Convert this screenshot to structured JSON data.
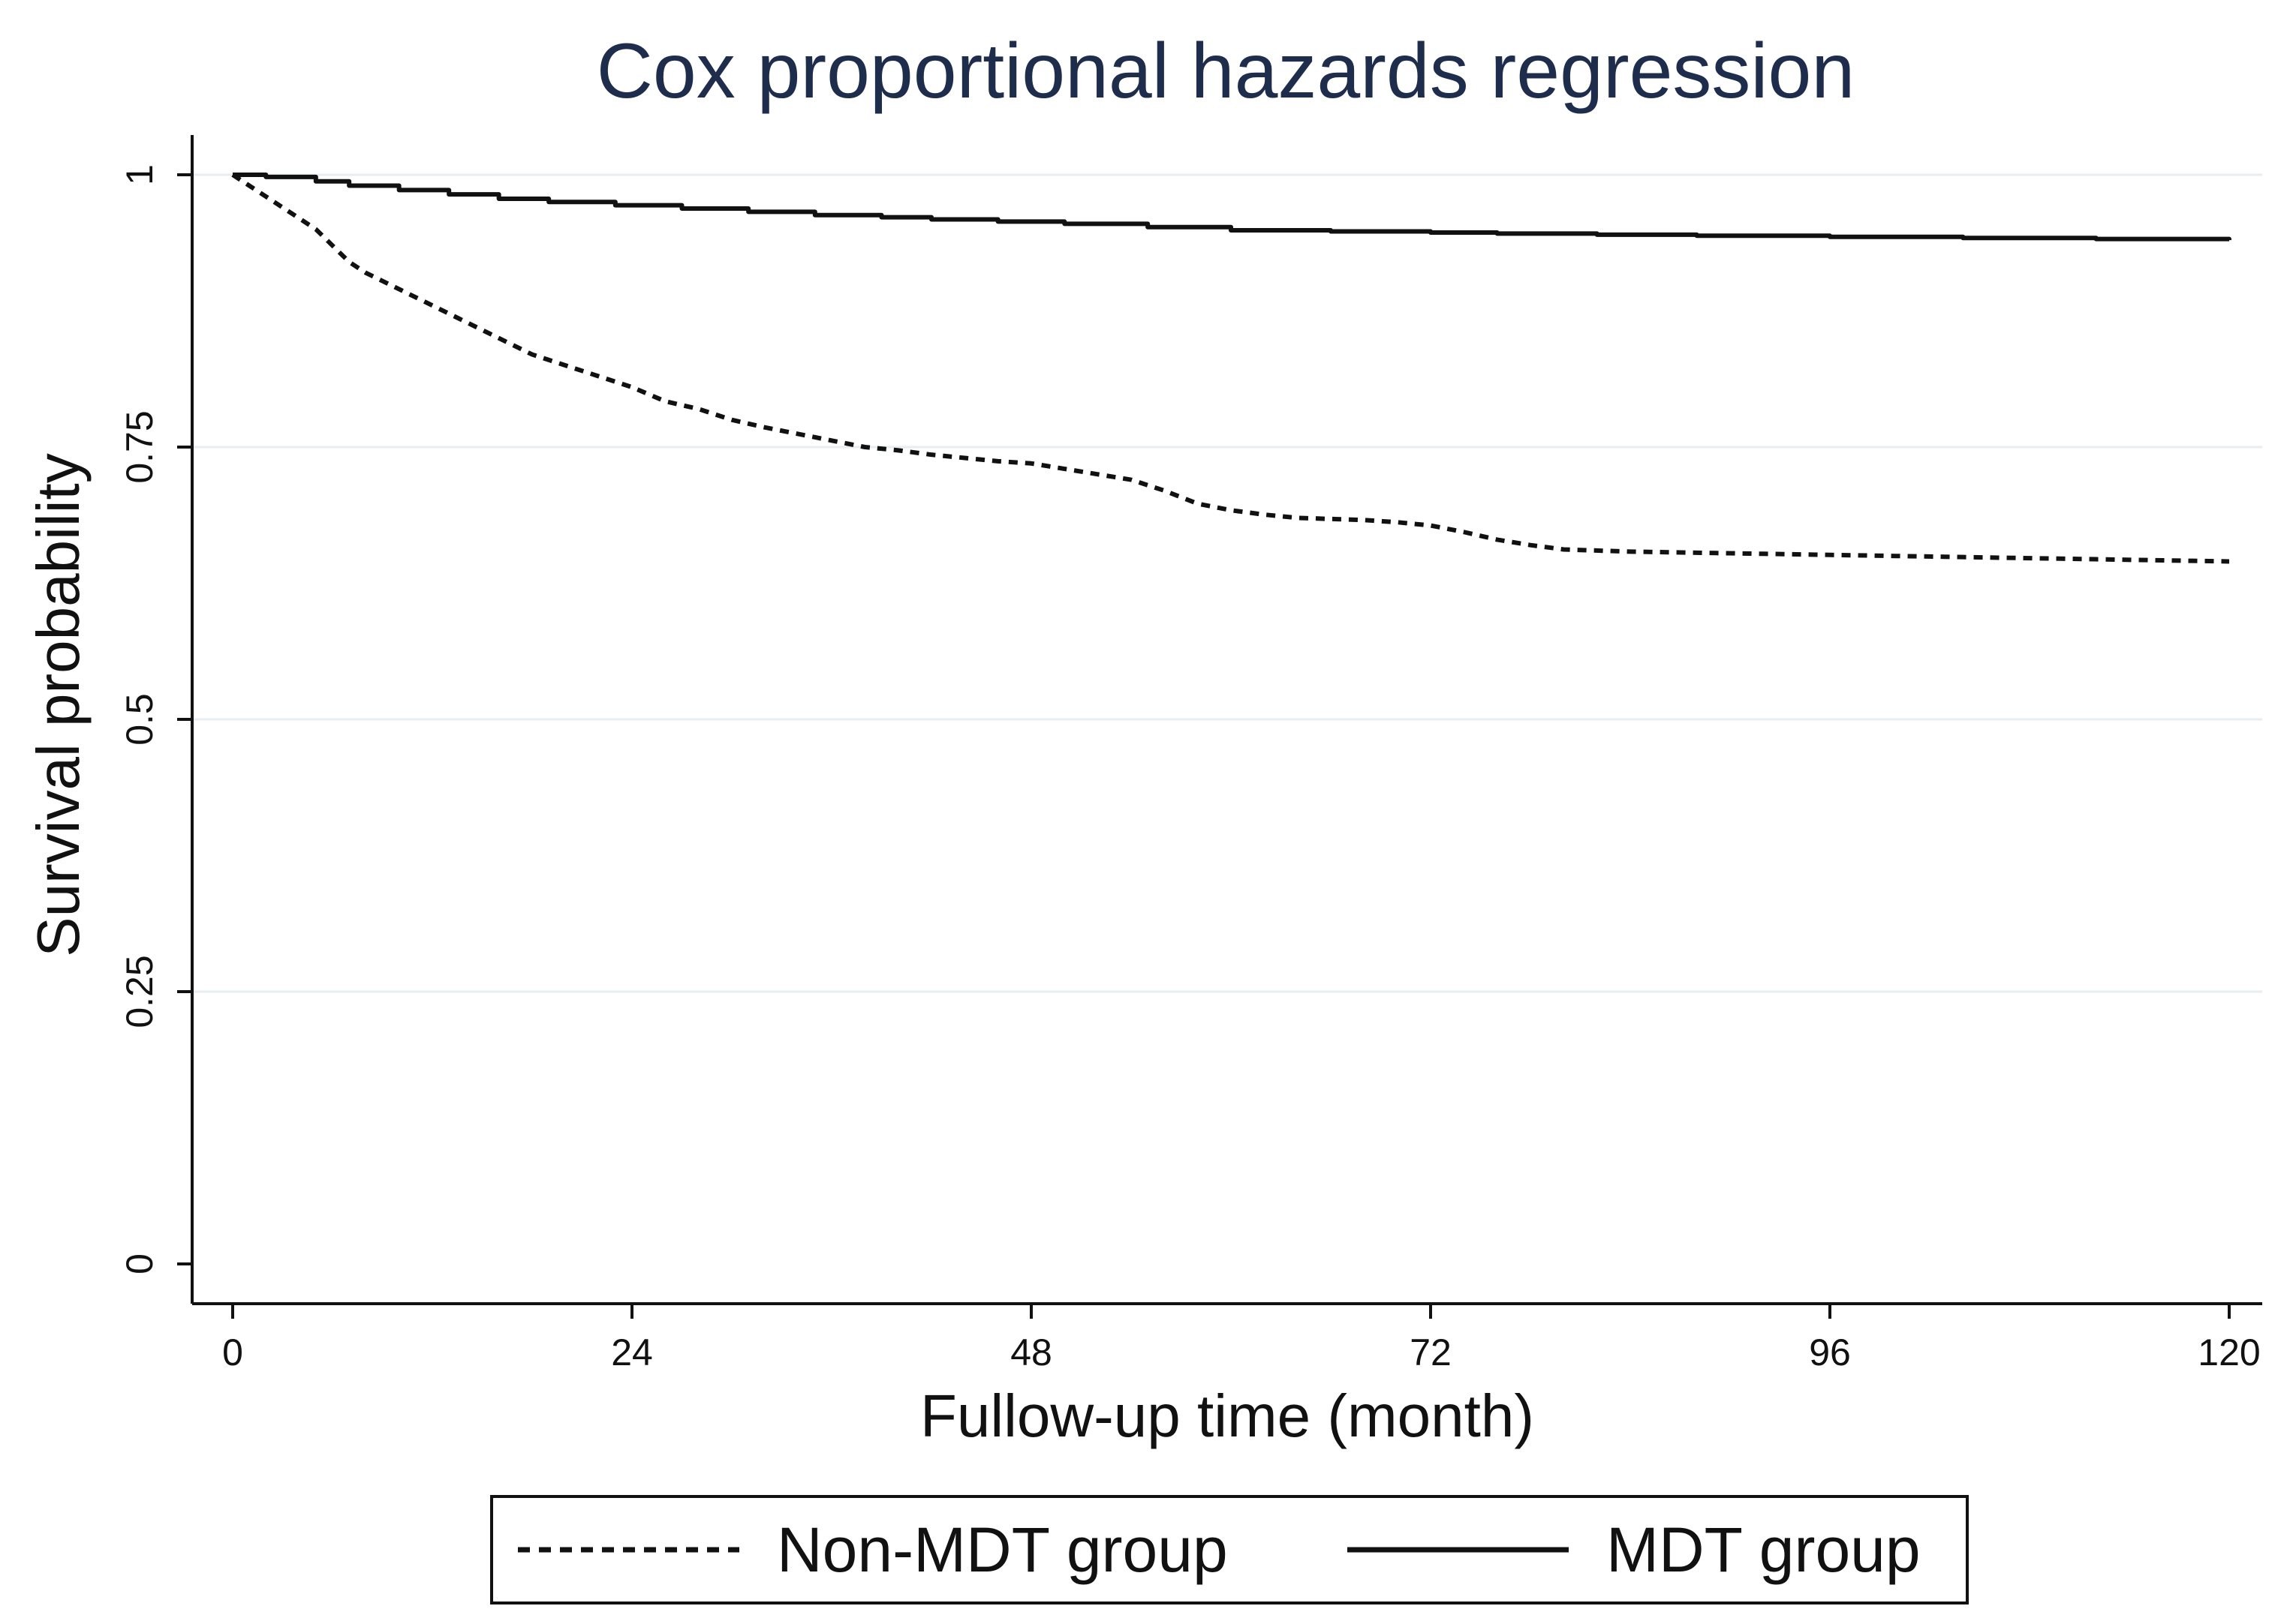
{
  "chart_data": {
    "type": "line",
    "title": "Cox proportional hazards regression",
    "xlabel": "Fullow-up time (month)",
    "ylabel": "Survival probability",
    "xlim": [
      0,
      120
    ],
    "ylim": [
      0,
      1
    ],
    "x_ticks": [
      0,
      24,
      48,
      72,
      96,
      120
    ],
    "x_tick_labels": [
      "0",
      "24",
      "48",
      "72",
      "96",
      "120"
    ],
    "y_ticks": [
      0,
      0.25,
      0.5,
      0.75,
      1
    ],
    "y_tick_labels": [
      "0",
      "0.25",
      "0.5",
      "0.75",
      "1"
    ],
    "grid": true,
    "legend_position": "bottom",
    "series": [
      {
        "name": "Non-MDT group",
        "style": "dashed",
        "color": "#111111",
        "step": false,
        "x": [
          0,
          2,
          4,
          5,
          6,
          7,
          8,
          10,
          12,
          14,
          16,
          18,
          20,
          22,
          24,
          26,
          28,
          30,
          32,
          34,
          36,
          38,
          40,
          42,
          44,
          46,
          48,
          50,
          52,
          54,
          56,
          58,
          60,
          62,
          64,
          66,
          68,
          70,
          72,
          74,
          76,
          78,
          80,
          84,
          88,
          92,
          96,
          100,
          104,
          108,
          112,
          116,
          120
        ],
        "y": [
          1.0,
          0.98,
          0.96,
          0.95,
          0.935,
          0.92,
          0.91,
          0.895,
          0.88,
          0.865,
          0.85,
          0.835,
          0.825,
          0.815,
          0.805,
          0.792,
          0.785,
          0.775,
          0.768,
          0.762,
          0.756,
          0.75,
          0.747,
          0.743,
          0.74,
          0.737,
          0.735,
          0.73,
          0.725,
          0.72,
          0.71,
          0.698,
          0.692,
          0.688,
          0.685,
          0.684,
          0.683,
          0.681,
          0.678,
          0.672,
          0.665,
          0.66,
          0.656,
          0.654,
          0.653,
          0.652,
          0.651,
          0.65,
          0.649,
          0.648,
          0.647,
          0.646,
          0.645
        ]
      },
      {
        "name": "MDT group",
        "style": "solid",
        "color": "#111111",
        "step": true,
        "x": [
          0,
          2,
          5,
          7,
          10,
          13,
          16,
          19,
          23,
          27,
          31,
          35,
          39,
          42,
          46,
          50,
          55,
          60,
          66,
          72,
          76,
          82,
          88,
          96,
          104,
          112,
          120
        ],
        "y": [
          1.0,
          0.998,
          0.994,
          0.99,
          0.986,
          0.982,
          0.978,
          0.975,
          0.972,
          0.969,
          0.966,
          0.963,
          0.961,
          0.959,
          0.957,
          0.955,
          0.952,
          0.949,
          0.948,
          0.947,
          0.946,
          0.945,
          0.944,
          0.943,
          0.942,
          0.941,
          0.94
        ]
      }
    ]
  }
}
